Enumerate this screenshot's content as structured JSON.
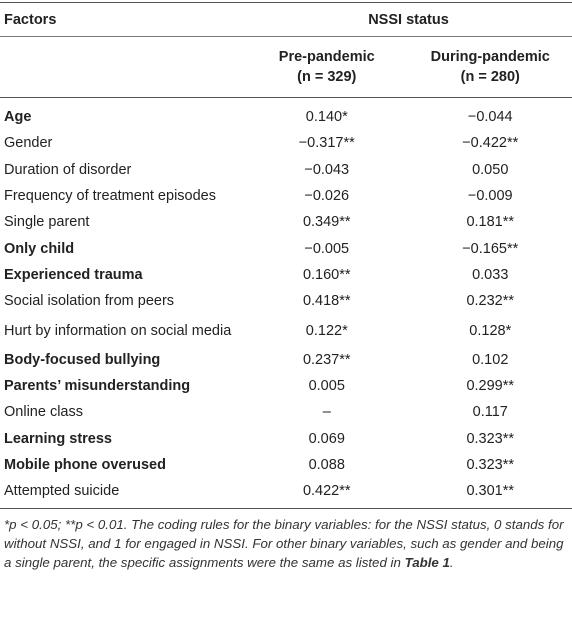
{
  "header": {
    "factors": "Factors",
    "group": "NSSI status",
    "columns": [
      {
        "name": "Pre-pandemic",
        "n": "(n = 329)"
      },
      {
        "name": "During-pandemic",
        "n": "(n = 280)"
      }
    ]
  },
  "table": {
    "rows": [
      {
        "label": "Age",
        "bold": true,
        "values": [
          "0.140*",
          "−0.044"
        ]
      },
      {
        "label": "Gender",
        "bold": false,
        "values": [
          "−0.317**",
          "−0.422**"
        ]
      },
      {
        "label": "Duration of disorder",
        "bold": false,
        "values": [
          "−0.043",
          "0.050"
        ]
      },
      {
        "label": "Frequency of treatment episodes",
        "bold": false,
        "values": [
          "−0.026",
          "−0.009"
        ]
      },
      {
        "label": "Single parent",
        "bold": false,
        "values": [
          "0.349**",
          "0.181**"
        ]
      },
      {
        "label": "Only child",
        "bold": true,
        "values": [
          "−0.005",
          "−0.165**"
        ]
      },
      {
        "label": "Experienced trauma",
        "bold": true,
        "values": [
          "0.160**",
          "0.033"
        ]
      },
      {
        "label": "Social isolation from peers",
        "bold": false,
        "values": [
          "0.418**",
          "0.232**"
        ]
      },
      {
        "label": "Hurt by information on social media",
        "bold": false,
        "values": [
          "0.122*",
          "0.128*"
        ]
      },
      {
        "label": "Body-focused bullying",
        "bold": true,
        "values": [
          "0.237**",
          "0.102"
        ]
      },
      {
        "label": "Parents’ misunderstanding",
        "bold": true,
        "values": [
          "0.005",
          "0.299**"
        ]
      },
      {
        "label": "Online class",
        "bold": false,
        "values": [
          "–",
          "0.117"
        ]
      },
      {
        "label": "Learning stress",
        "bold": true,
        "values": [
          "0.069",
          "0.323**"
        ]
      },
      {
        "label": "Mobile phone overused",
        "bold": true,
        "values": [
          "0.088",
          "0.323**"
        ]
      },
      {
        "label": "Attempted suicide",
        "bold": false,
        "values": [
          "0.422**",
          "0.301**"
        ]
      }
    ]
  },
  "footnote": {
    "text": "*p < 0.05; **p < 0.01. The coding rules for the binary variables: for the NSSI status, 0 stands for without NSSI, and 1 for engaged in NSSI. For other binary variables, such as gender and being a single parent, the specific assignments were the same as listed in ",
    "ref": "Table 1",
    "end": "."
  }
}
